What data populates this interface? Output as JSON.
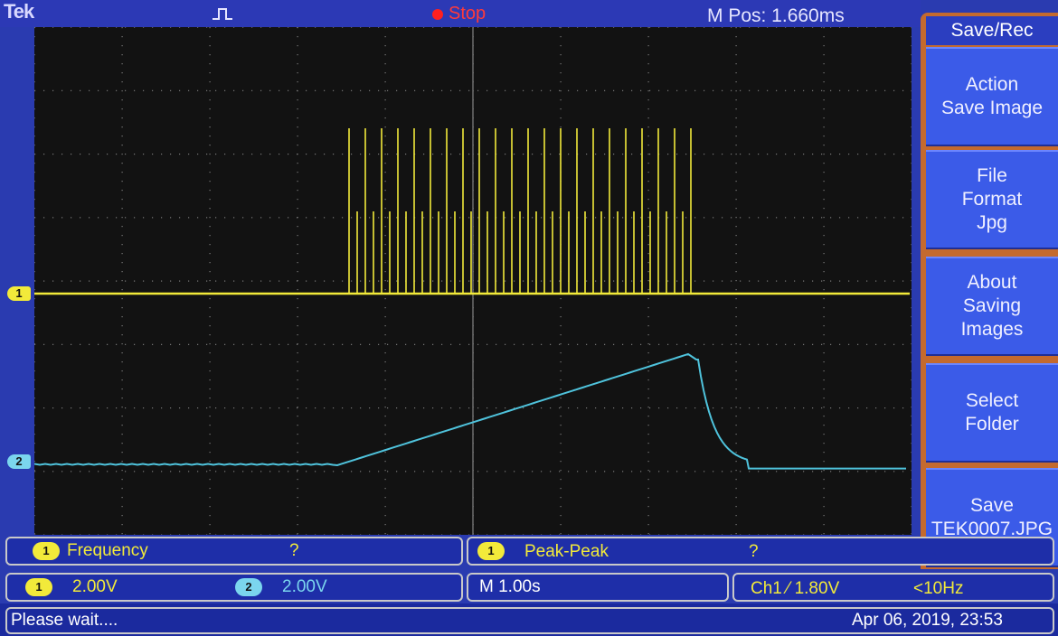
{
  "topbar": {
    "brand": "Tek",
    "trigger_type_icon": "pulse-icon",
    "run_state": "Stop",
    "run_state_color": "#ff2020",
    "m_pos": "M Pos: 1.660ms"
  },
  "channels": {
    "ch1": {
      "marker": "1",
      "color": "#f2ea3a"
    },
    "ch2": {
      "marker": "2",
      "color": "#7bd6ee"
    }
  },
  "menu": {
    "title": "Save/Rec",
    "items": [
      {
        "label": "Action\nSave Image"
      },
      {
        "label": "File\nFormat\nJpg"
      },
      {
        "label": "About\nSaving\nImages"
      },
      {
        "label": "Select\nFolder"
      },
      {
        "label": "Save\nTEK0007.JPG"
      }
    ]
  },
  "measurements": {
    "m1": {
      "channel": "1",
      "name": "Frequency",
      "value": "?"
    },
    "m2": {
      "channel": "1",
      "name": "Peak-Peak",
      "value": "?"
    }
  },
  "scales": {
    "ch1": {
      "channel": "1",
      "value": "2.00V"
    },
    "ch2": {
      "channel": "2",
      "value": "2.00V"
    },
    "timebase": "M 1.00s",
    "trigger": "Ch1 ⁄ 1.80V",
    "trigger_freq": "<10Hz"
  },
  "status": {
    "message": "Please wait....",
    "datetime": "Apr 06, 2019, 23:53"
  }
}
